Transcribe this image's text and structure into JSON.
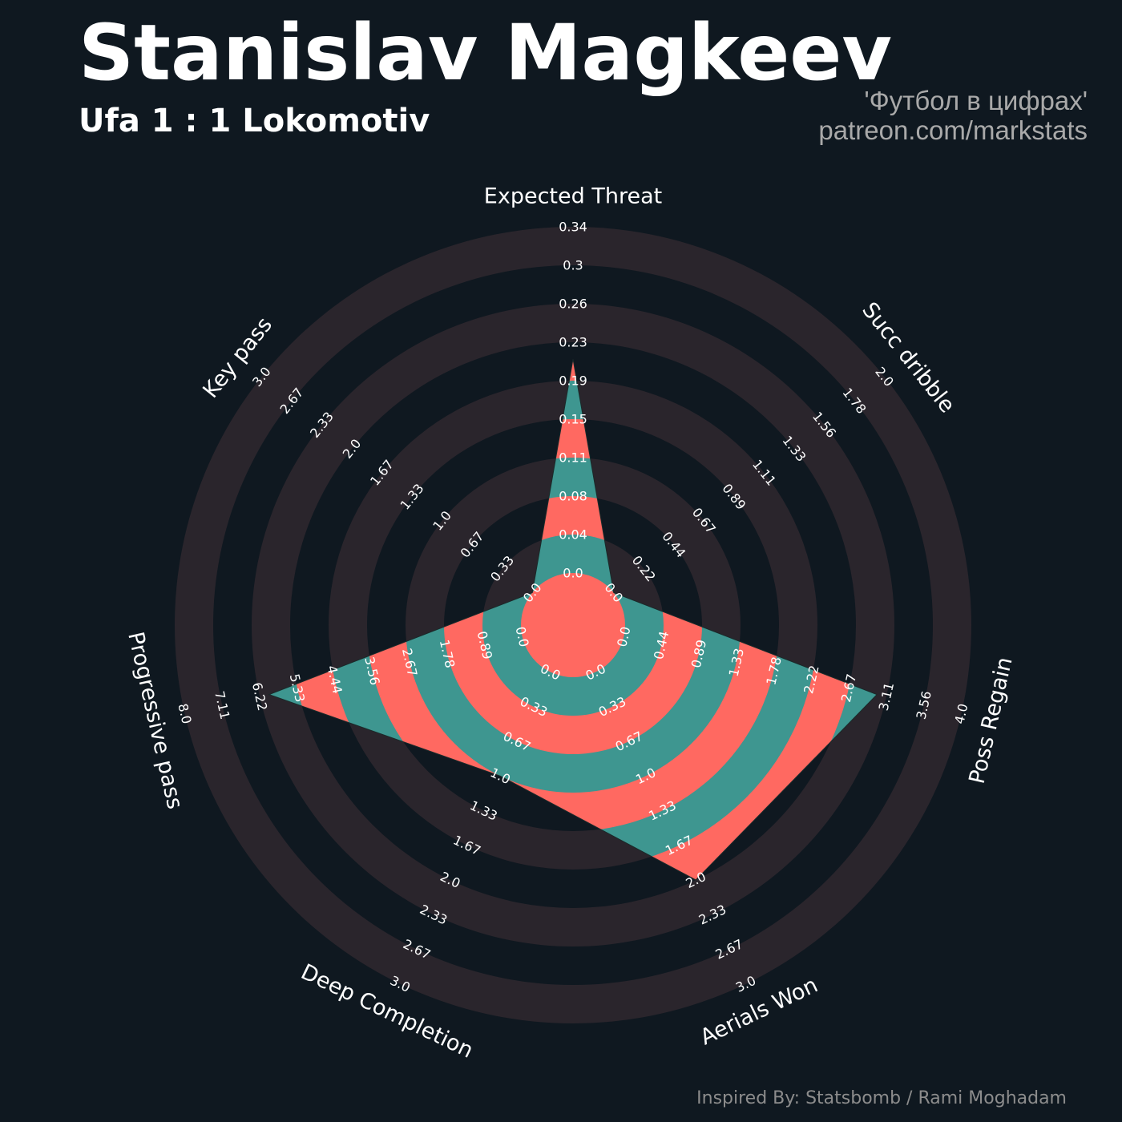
{
  "header": {
    "title": "Stanislav Magkeev",
    "subtitle": "Ufa 1 : 1 Lokomotiv",
    "credit_line1": "'Футбол в цифрах'",
    "credit_line2": "patreon.com/markstats"
  },
  "footer": {
    "text": "Inspired By: Statsbomb / Rami Moghadam"
  },
  "colors": {
    "background": "#0f1820",
    "ring_dark": "#2a252c",
    "ring_light": "#0f1820",
    "fill_a": "#3e9690",
    "fill_b": "#ff6961",
    "text": "#ffffff"
  },
  "chart_data": {
    "type": "radar",
    "parameters": [
      {
        "name": "Expected Threat",
        "value": 0.21,
        "min": 0.0,
        "max": 0.34,
        "ticks": [
          "0.0",
          "0.04",
          "0.08",
          "0.11",
          "0.15",
          "0.19",
          "0.23",
          "0.26",
          "0.3",
          "0.34"
        ]
      },
      {
        "name": "Succ dribble",
        "value": 0.0,
        "min": 0.0,
        "max": 2.0,
        "ticks": [
          "0.0",
          "0.22",
          "0.44",
          "0.67",
          "0.89",
          "1.11",
          "1.33",
          "1.56",
          "1.78",
          "2.0"
        ]
      },
      {
        "name": "Poss Regain",
        "value": 3.0,
        "min": 0.0,
        "max": 4.0,
        "ticks": [
          "0.0",
          "0.44",
          "0.89",
          "1.33",
          "1.78",
          "2.22",
          "2.67",
          "3.11",
          "3.56",
          "4.0"
        ]
      },
      {
        "name": "Aerials Won",
        "value": 2.0,
        "min": 0.0,
        "max": 3.0,
        "ticks": [
          "0.0",
          "0.33",
          "0.67",
          "1.0",
          "1.33",
          "1.67",
          "2.0",
          "2.33",
          "2.67",
          "3.0"
        ]
      },
      {
        "name": "Deep Completion",
        "value": 1.0,
        "min": 0.0,
        "max": 3.0,
        "ticks": [
          "0.0",
          "0.33",
          "0.67",
          "1.0",
          "1.33",
          "1.67",
          "2.0",
          "2.33",
          "2.67",
          "3.0"
        ]
      },
      {
        "name": "Progressive pass",
        "value": 6.0,
        "min": 0.0,
        "max": 8.0,
        "ticks": [
          "0.0",
          "0.89",
          "1.78",
          "2.67",
          "3.56",
          "4.44",
          "5.33",
          "6.22",
          "7.11",
          "8.0"
        ]
      },
      {
        "name": "Key pass",
        "value": 0.0,
        "min": 0.0,
        "max": 3.0,
        "ticks": [
          "0.0",
          "0.33",
          "0.67",
          "1.0",
          "1.33",
          "1.67",
          "2.0",
          "2.33",
          "2.67",
          "3.0"
        ]
      }
    ]
  }
}
